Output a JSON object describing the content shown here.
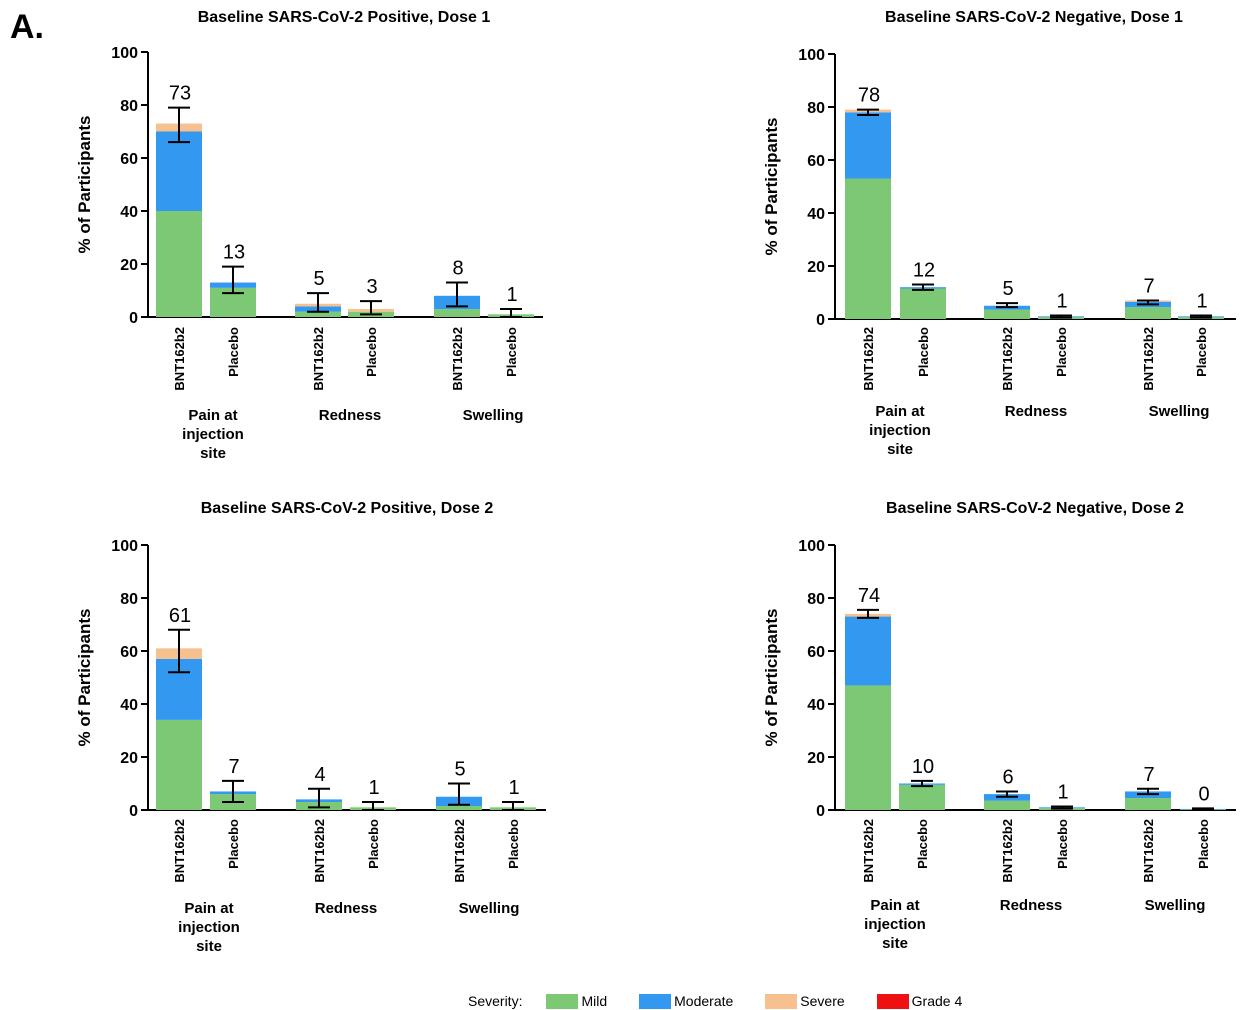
{
  "panel_label": "A.",
  "colors": {
    "mild": "#7dc874",
    "moderate": "#3399f0",
    "severe": "#f7c08f",
    "grade4": "#ee1111"
  },
  "legend": {
    "title": "Severity:",
    "items": [
      {
        "key": "mild",
        "label": "Mild"
      },
      {
        "key": "moderate",
        "label": "Moderate"
      },
      {
        "key": "severe",
        "label": "Severe"
      },
      {
        "key": "grade4",
        "label": "Grade 4"
      }
    ]
  },
  "chart_data": [
    {
      "type": "bar",
      "stacked": true,
      "title": "Baseline SARS-CoV-2 Positive, Dose 1",
      "ylabel": "% of Participants",
      "ylim": [
        0,
        100
      ],
      "yticks": [
        0,
        20,
        40,
        60,
        80,
        100
      ],
      "groups": [
        "Pain at\ninjection\nsite",
        "Redness",
        "Swelling"
      ],
      "bars": [
        {
          "category": "BNT162b2",
          "group": 0,
          "total": 73,
          "label": "73",
          "mild": 40,
          "moderate": 30,
          "severe": 3,
          "grade4": 0,
          "ci": [
            66,
            79
          ]
        },
        {
          "category": "Placebo",
          "group": 0,
          "total": 13,
          "label": "13",
          "mild": 11,
          "moderate": 2,
          "severe": 0,
          "grade4": 0,
          "ci": [
            9,
            19
          ]
        },
        {
          "category": "BNT162b2",
          "group": 1,
          "total": 5,
          "label": "5",
          "mild": 2,
          "moderate": 2,
          "severe": 1,
          "grade4": 0,
          "ci": [
            2,
            9
          ]
        },
        {
          "category": "Placebo",
          "group": 1,
          "total": 3,
          "label": "3",
          "mild": 2,
          "moderate": 0,
          "severe": 1,
          "grade4": 0,
          "ci": [
            1,
            6
          ]
        },
        {
          "category": "BNT162b2",
          "group": 2,
          "total": 8,
          "label": "8",
          "mild": 3,
          "moderate": 5,
          "severe": 0,
          "grade4": 0,
          "ci": [
            4,
            13
          ]
        },
        {
          "category": "Placebo",
          "group": 2,
          "total": 1,
          "label": "1",
          "mild": 1,
          "moderate": 0,
          "severe": 0,
          "grade4": 0,
          "ci": [
            0,
            3
          ]
        }
      ]
    },
    {
      "type": "bar",
      "stacked": true,
      "title": "Baseline SARS-CoV-2 Negative, Dose 1",
      "ylabel": "% of Participants",
      "ylim": [
        0,
        100
      ],
      "yticks": [
        0,
        20,
        40,
        60,
        80,
        100
      ],
      "groups": [
        "Pain at\ninjection\nsite",
        "Redness",
        "Swelling"
      ],
      "bars": [
        {
          "category": "BNT162b2",
          "group": 0,
          "total": 78,
          "label": "78",
          "mild": 53,
          "moderate": 25,
          "severe": 1,
          "grade4": 0,
          "ci": [
            77,
            79
          ]
        },
        {
          "category": "Placebo",
          "group": 0,
          "total": 12,
          "label": "12",
          "mild": 11.5,
          "moderate": 0.5,
          "severe": 0,
          "grade4": 0,
          "ci": [
            11,
            13
          ]
        },
        {
          "category": "BNT162b2",
          "group": 1,
          "total": 5,
          "label": "5",
          "mild": 3.5,
          "moderate": 1.5,
          "severe": 0,
          "grade4": 0,
          "ci": [
            4.5,
            6
          ]
        },
        {
          "category": "Placebo",
          "group": 1,
          "total": 1,
          "label": "1",
          "mild": 0.7,
          "moderate": 0.3,
          "severe": 0,
          "grade4": 0,
          "ci": [
            0.5,
            1.3
          ]
        },
        {
          "category": "BNT162b2",
          "group": 2,
          "total": 7,
          "label": "7",
          "mild": 4.5,
          "moderate": 2,
          "severe": 0.5,
          "grade4": 0,
          "ci": [
            5.5,
            7
          ]
        },
        {
          "category": "Placebo",
          "group": 2,
          "total": 1,
          "label": "1",
          "mild": 0.7,
          "moderate": 0.3,
          "severe": 0,
          "grade4": 0,
          "ci": [
            0.5,
            1.3
          ]
        }
      ]
    },
    {
      "type": "bar",
      "stacked": true,
      "title": "Baseline SARS-CoV-2 Positive,  Dose 2",
      "ylabel": "% of Participants",
      "ylim": [
        0,
        100
      ],
      "yticks": [
        0,
        20,
        40,
        60,
        80,
        100
      ],
      "groups": [
        "Pain at\ninjection\nsite",
        "Redness",
        "Swelling"
      ],
      "bars": [
        {
          "category": "BNT162b2",
          "group": 0,
          "total": 61,
          "label": "61",
          "mild": 34,
          "moderate": 23,
          "severe": 4,
          "grade4": 0,
          "ci": [
            52,
            68
          ]
        },
        {
          "category": "Placebo",
          "group": 0,
          "total": 7,
          "label": "7",
          "mild": 6,
          "moderate": 1,
          "severe": 0,
          "grade4": 0,
          "ci": [
            3,
            11
          ]
        },
        {
          "category": "BNT162b2",
          "group": 1,
          "total": 4,
          "label": "4",
          "mild": 3,
          "moderate": 1,
          "severe": 0,
          "grade4": 0,
          "ci": [
            1,
            8
          ]
        },
        {
          "category": "Placebo",
          "group": 1,
          "total": 1,
          "label": "1",
          "mild": 1,
          "moderate": 0,
          "severe": 0,
          "grade4": 0,
          "ci": [
            0,
            3
          ]
        },
        {
          "category": "BNT162b2",
          "group": 2,
          "total": 5,
          "label": "5",
          "mild": 1.5,
          "moderate": 3.5,
          "severe": 0,
          "grade4": 0,
          "ci": [
            2,
            10
          ]
        },
        {
          "category": "Placebo",
          "group": 2,
          "total": 1,
          "label": "1",
          "mild": 1,
          "moderate": 0,
          "severe": 0,
          "grade4": 0,
          "ci": [
            0,
            3
          ]
        }
      ]
    },
    {
      "type": "bar",
      "stacked": true,
      "title": "Baseline SARS-CoV-2 Negative, Dose 2",
      "ylabel": "% of Participants",
      "ylim": [
        0,
        100
      ],
      "yticks": [
        0,
        20,
        40,
        60,
        80,
        100
      ],
      "groups": [
        "Pain at\ninjection\nsite",
        "Redness",
        "Swelling"
      ],
      "bars": [
        {
          "category": "BNT162b2",
          "group": 0,
          "total": 74,
          "label": "74",
          "mild": 47,
          "moderate": 26,
          "severe": 1,
          "grade4": 0,
          "ci": [
            72.5,
            75.5
          ]
        },
        {
          "category": "Placebo",
          "group": 0,
          "total": 10,
          "label": "10",
          "mild": 9.5,
          "moderate": 0.5,
          "severe": 0,
          "grade4": 0,
          "ci": [
            9,
            11
          ]
        },
        {
          "category": "BNT162b2",
          "group": 1,
          "total": 6,
          "label": "6",
          "mild": 3.5,
          "moderate": 2.5,
          "severe": 0,
          "grade4": 0,
          "ci": [
            5,
            7
          ]
        },
        {
          "category": "Placebo",
          "group": 1,
          "total": 1,
          "label": "1",
          "mild": 0.7,
          "moderate": 0.3,
          "severe": 0,
          "grade4": 0,
          "ci": [
            0.5,
            1.3
          ]
        },
        {
          "category": "BNT162b2",
          "group": 2,
          "total": 7,
          "label": "7",
          "mild": 4.5,
          "moderate": 2.5,
          "severe": 0,
          "grade4": 0,
          "ci": [
            6,
            8
          ]
        },
        {
          "category": "Placebo",
          "group": 2,
          "total": 0,
          "label": "0",
          "mild": 0.3,
          "moderate": 0.1,
          "severe": 0,
          "grade4": 0,
          "ci": [
            0.2,
            0.6
          ]
        }
      ]
    }
  ]
}
